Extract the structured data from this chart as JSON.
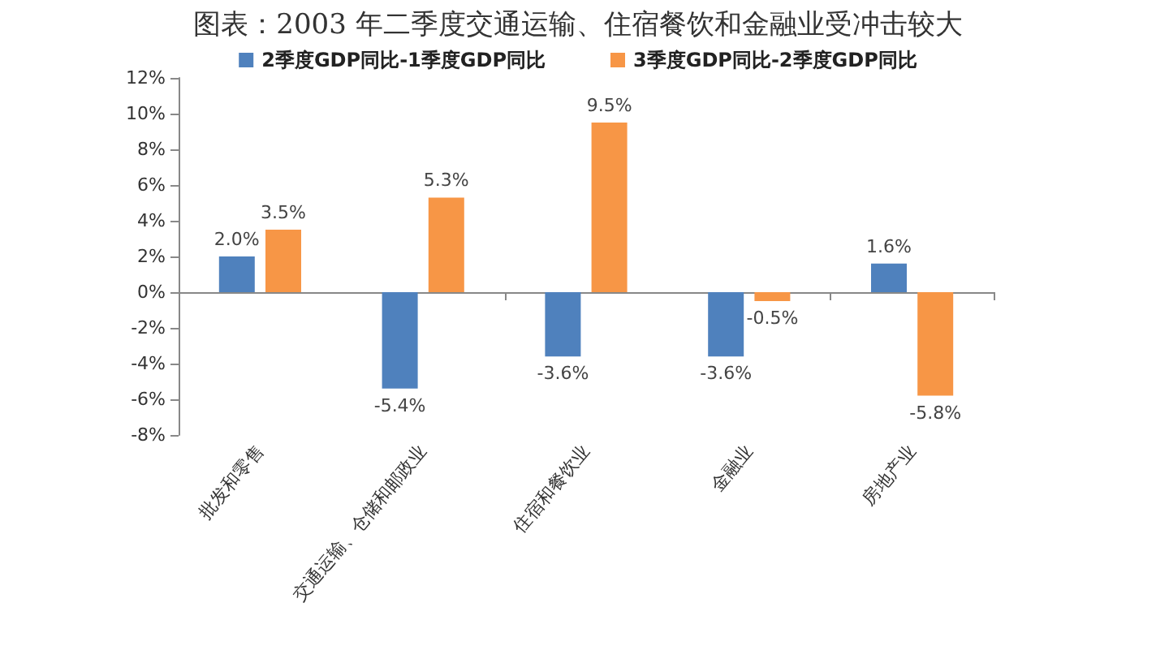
{
  "chart_data": {
    "type": "bar",
    "title": "图表：2003 年二季度交通运输、住宿餐饮和金融业受冲击较大",
    "categories": [
      "批发和零售",
      "交通运输、仓储和邮政业",
      "住宿和餐饮业",
      "金融业",
      "房地产业"
    ],
    "series": [
      {
        "name": "2季度GDP同比-1季度GDP同比",
        "color": "#4f81bd",
        "values": [
          2.0,
          -5.4,
          -3.6,
          -3.6,
          1.6
        ],
        "value_labels": [
          "2.0%",
          "-5.4%",
          "-3.6%",
          "-3.6%",
          "1.6%"
        ]
      },
      {
        "name": "3季度GDP同比-2季度GDP同比",
        "color": "#f79646",
        "values": [
          3.5,
          5.3,
          9.5,
          -0.5,
          -5.8
        ],
        "value_labels": [
          "3.5%",
          "5.3%",
          "9.5%",
          "-0.5%",
          "-5.8%"
        ]
      }
    ],
    "ylim": [
      -8,
      12
    ],
    "yticks": [
      {
        "value": -8,
        "label": "-8%"
      },
      {
        "value": -6,
        "label": "-6%"
      },
      {
        "value": -4,
        "label": "-4%"
      },
      {
        "value": -2,
        "label": "-2%"
      },
      {
        "value": 0,
        "label": "0%"
      },
      {
        "value": 2,
        "label": "2%"
      },
      {
        "value": 4,
        "label": "4%"
      },
      {
        "value": 6,
        "label": "6%"
      },
      {
        "value": 8,
        "label": "8%"
      },
      {
        "value": 10,
        "label": "10%"
      },
      {
        "value": 12,
        "label": "12%"
      }
    ],
    "legend": "top"
  }
}
